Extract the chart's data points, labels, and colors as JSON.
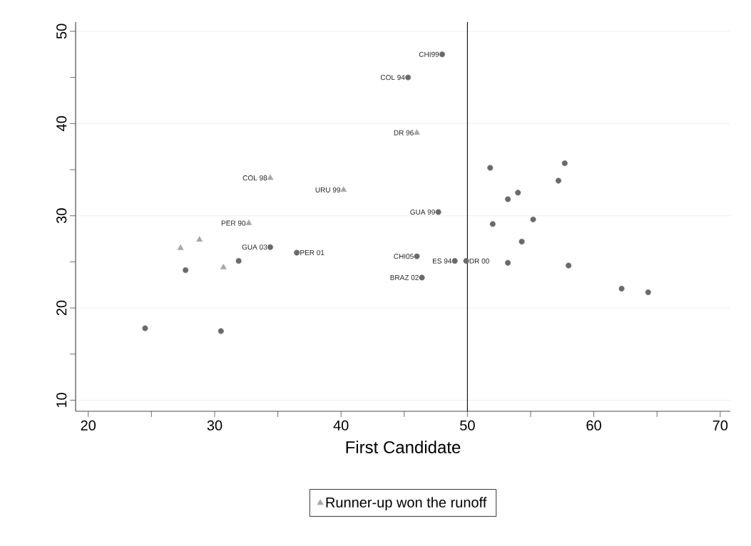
{
  "chart_data": {
    "type": "scatter",
    "xlabel": "First Candidate",
    "xlim": [
      19,
      70.8
    ],
    "ylim": [
      8.8,
      51
    ],
    "xticks": [
      20,
      {
        "value": 25,
        "label": null
      },
      30,
      {
        "value": 35,
        "label": null
      },
      40,
      {
        "value": 45,
        "label": null
      },
      50,
      {
        "value": 55,
        "label": null
      },
      60,
      {
        "value": 65,
        "label": null
      },
      70
    ],
    "yticks": [
      10,
      {
        "value": 15,
        "label": null
      },
      20,
      {
        "value": 25,
        "label": null
      },
      30,
      {
        "value": 35,
        "label": null
      },
      40,
      {
        "value": 45,
        "label": null
      },
      50
    ],
    "grid": "y",
    "legend": "bottom",
    "series": [
      {
        "color": "#6a6a6a",
        "marker": "circle",
        "x": [
          48.0,
          45.3,
          47.7,
          46.0,
          49.0,
          49.9,
          46.4,
          34.4,
          36.5,
          31.9,
          27.7,
          24.5,
          30.5,
          51.8,
          57.7,
          57.2,
          54.0,
          53.2,
          52.0,
          55.2,
          54.3,
          53.2,
          58.0,
          62.2,
          64.3
        ],
        "values": [
          47.5,
          45.0,
          30.4,
          25.6,
          25.1,
          25.1,
          23.3,
          26.6,
          26.0,
          25.1,
          24.1,
          17.8,
          17.5,
          35.2,
          35.7,
          33.8,
          32.5,
          31.8,
          29.1,
          29.6,
          27.2,
          24.9,
          24.6,
          22.1,
          21.7
        ]
      },
      {
        "name": "Runner-up won the runoff",
        "color": "#a8a8a8",
        "marker": "triangle",
        "x": [
          46.0,
          34.4,
          40.2,
          32.7,
          28.8,
          27.3,
          30.7
        ],
        "values": [
          39.0,
          34.1,
          32.8,
          29.2,
          27.4,
          26.5,
          24.4
        ]
      }
    ],
    "ref_lines": [
      {
        "axis": "x",
        "value": 50,
        "color": "#000000",
        "line_style": "solid"
      }
    ],
    "annotations": [
      {
        "text": "CHI99",
        "x": 48.0,
        "y": 47.5
      },
      {
        "text": "COL 94",
        "x": 45.3,
        "y": 45.0
      },
      {
        "text": "DR 96",
        "x": 46.0,
        "y": 39.0
      },
      {
        "text": "COL 98",
        "x": 34.4,
        "y": 34.1
      },
      {
        "text": "URU 99",
        "x": 40.2,
        "y": 32.8
      },
      {
        "text": "GUA 99",
        "x": 47.7,
        "y": 30.4
      },
      {
        "text": "PER 90",
        "x": 32.7,
        "y": 29.2
      },
      {
        "text": "GUA 03",
        "x": 34.4,
        "y": 26.6
      },
      {
        "text": "PER 01",
        "x": 36.5,
        "y": 26.0
      },
      {
        "text": "CHI05",
        "x": 46.0,
        "y": 25.6
      },
      {
        "text": "ES 94",
        "x": 49.0,
        "y": 25.1
      },
      {
        "text": "DR 00",
        "x": 49.9,
        "y": 25.1
      },
      {
        "text": "BRAZ 02",
        "x": 46.4,
        "y": 23.3
      }
    ]
  }
}
